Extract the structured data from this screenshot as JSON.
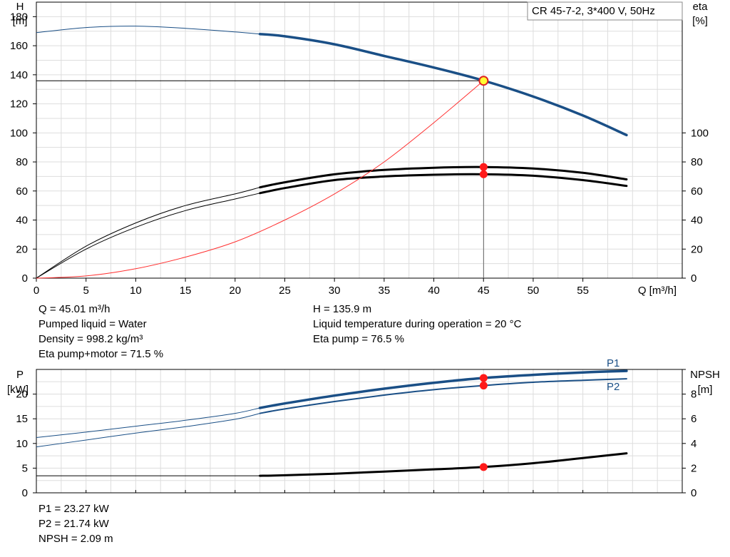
{
  "chart_data": [
    {
      "type": "line",
      "title": "CR 45-7-2, 3*400 V, 50Hz",
      "xlabel": "Q [m³/h]",
      "ylabel_left_name": "H",
      "ylabel_left_unit": "[m]",
      "ylabel_right_name": "eta",
      "ylabel_right_unit": "[%]",
      "xlim": [
        0,
        65
      ],
      "ylim_left": [
        0,
        190
      ],
      "ylim_right": [
        0,
        190
      ],
      "x_ticks": [
        0,
        5,
        10,
        15,
        20,
        25,
        30,
        35,
        40,
        45,
        50,
        55
      ],
      "y_ticks_left": [
        0,
        20,
        40,
        60,
        80,
        100,
        120,
        140,
        160,
        180
      ],
      "y_ticks_right": [
        0,
        20,
        40,
        60,
        80,
        100
      ],
      "grid": true,
      "duty_point": {
        "x": 45.01,
        "y": 135.9
      },
      "operating_range": [
        22.5,
        59.4
      ],
      "series": [
        {
          "key": "head",
          "color": "#1a4f86",
          "x": [
            0,
            5,
            10,
            15,
            20,
            22.5,
            25,
            30,
            35,
            40,
            45,
            50,
            55,
            59.4
          ],
          "y": [
            169,
            172.5,
            173.5,
            172,
            169.5,
            168,
            166.5,
            161,
            153,
            145,
            136,
            125,
            112,
            98.5
          ]
        },
        {
          "key": "eta-pump",
          "color": "#000000",
          "x": [
            0,
            5,
            10,
            15,
            20,
            22.5,
            25,
            30,
            35,
            40,
            45,
            50,
            55,
            59.4
          ],
          "y": [
            0,
            22,
            38,
            50,
            58,
            62.5,
            66,
            71.5,
            74.5,
            76,
            76.5,
            75.5,
            72.5,
            68
          ]
        },
        {
          "key": "eta-pump-motor",
          "color": "#000000",
          "x": [
            0,
            5,
            10,
            15,
            20,
            22.5,
            25,
            30,
            35,
            40,
            45,
            50,
            55,
            59.4
          ],
          "y": [
            0,
            20,
            35,
            46.5,
            54.5,
            58.5,
            62,
            67.5,
            70,
            71.2,
            71.5,
            70.5,
            67.5,
            63.5
          ]
        },
        {
          "key": "system-curve",
          "color": "#ff3030",
          "x": [
            0,
            5,
            10,
            15,
            20,
            25,
            30,
            35,
            40,
            45
          ],
          "y": [
            0,
            1.5,
            6.5,
            14.5,
            25,
            40,
            58,
            80,
            107,
            135.9
          ]
        }
      ],
      "markers": [
        {
          "x": 45.01,
          "y": 135.9,
          "style": "duty"
        },
        {
          "x": 45.01,
          "y": 76.5,
          "style": "point"
        },
        {
          "x": 45.01,
          "y": 71.5,
          "style": "point"
        }
      ],
      "readout_left": [
        "Q = 45.01 m³/h",
        "Pumped liquid = Water",
        "Density = 998.2 kg/m³",
        "Eta pump+motor = 71.5 %"
      ],
      "readout_right": [
        "H = 135.9 m",
        "Liquid temperature during operation = 20 °C",
        "Eta pump = 76.5 %"
      ]
    },
    {
      "type": "line",
      "ylabel_left_name": "P",
      "ylabel_left_unit": "[kW]",
      "ylabel_right_name": "NPSH",
      "ylabel_right_unit": "[m]",
      "xlim": [
        0,
        65
      ],
      "ylim_left": [
        0,
        25
      ],
      "ylim_right": [
        0,
        10
      ],
      "x_ticks": [
        0,
        5,
        10,
        15,
        20,
        25,
        30,
        35,
        40,
        45,
        50,
        55
      ],
      "y_ticks_left": [
        0,
        5,
        10,
        15,
        20
      ],
      "y_ticks_right": [
        0,
        2,
        4,
        6,
        8,
        10
      ],
      "y_ticks_right_labels": [
        "0",
        "2",
        "4",
        "6",
        "8",
        ""
      ],
      "grid": true,
      "duty_x": 45.01,
      "operating_range": [
        22.5,
        59.4
      ],
      "series": [
        {
          "name": "P1",
          "axis": "left",
          "color": "#1a4f86",
          "x": [
            0,
            5,
            10,
            15,
            20,
            22.5,
            25,
            30,
            35,
            40,
            45,
            50,
            55,
            59.4
          ],
          "y": [
            11.2,
            12.3,
            13.5,
            14.7,
            16.1,
            17.2,
            18.1,
            19.7,
            21.1,
            22.3,
            23.27,
            23.9,
            24.4,
            24.7
          ]
        },
        {
          "name": "P2",
          "axis": "left",
          "color": "#1a4f86",
          "x": [
            0,
            5,
            10,
            15,
            20,
            22.5,
            25,
            30,
            35,
            40,
            45,
            50,
            55,
            59.4
          ],
          "y": [
            9.3,
            10.7,
            12.1,
            13.4,
            14.9,
            16.1,
            17.0,
            18.5,
            19.8,
            20.9,
            21.74,
            22.4,
            22.8,
            23.1
          ]
        },
        {
          "key": "npsh",
          "axis": "right",
          "color": "#000000",
          "x": [
            0,
            22.5,
            25,
            30,
            35,
            40,
            45,
            50,
            55,
            59.4
          ],
          "y": [
            1.38,
            1.38,
            1.42,
            1.55,
            1.72,
            1.9,
            2.09,
            2.4,
            2.82,
            3.2
          ]
        }
      ],
      "markers": [
        {
          "x": 45.01,
          "y": 23.27,
          "axis": "left"
        },
        {
          "x": 45.01,
          "y": 21.74,
          "axis": "left"
        },
        {
          "x": 45.01,
          "y": 2.09,
          "axis": "right"
        }
      ],
      "readout": [
        "P1 = 23.27 kW",
        "P2 = 21.74 kW",
        "NPSH = 2.09 m"
      ]
    }
  ]
}
